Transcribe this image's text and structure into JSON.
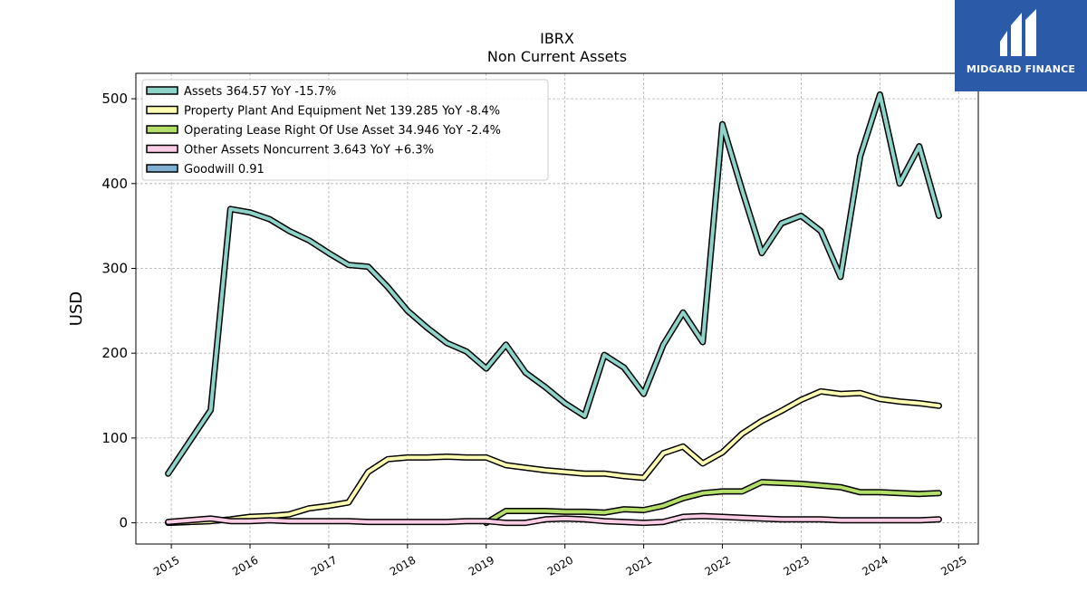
{
  "title": "IBRX",
  "subtitle": "Non Current  Assets",
  "brand": {
    "name": "MIDGARD FINANCE",
    "color": "#2a5aa8"
  },
  "chart_data": {
    "type": "line",
    "ylabel": "USD",
    "xlim": [
      2014.55,
      2025.25
    ],
    "ylim": [
      -25,
      530
    ],
    "yticks": [
      0,
      100,
      200,
      300,
      400,
      500
    ],
    "xticks": [
      2015,
      2016,
      2017,
      2018,
      2019,
      2020,
      2021,
      2022,
      2023,
      2024,
      2025
    ],
    "grid": true,
    "legend_position": "top-left",
    "series": [
      {
        "name": "Assets",
        "legend": "Assets  364.57 YoY -15.7%",
        "color": "#8dd3c7",
        "x": [
          2014.96,
          2015.5,
          2015.75,
          2016.0,
          2016.25,
          2016.5,
          2016.75,
          2017.0,
          2017.25,
          2017.5,
          2017.75,
          2018.0,
          2018.25,
          2018.5,
          2018.75,
          2019.0,
          2019.25,
          2019.5,
          2019.75,
          2020.0,
          2020.25,
          2020.5,
          2020.75,
          2021.0,
          2021.25,
          2021.5,
          2021.75,
          2022.0,
          2022.25,
          2022.5,
          2022.75,
          2023.0,
          2023.25,
          2023.5,
          2023.75,
          2024.0,
          2024.25,
          2024.5,
          2024.75
        ],
        "y": [
          58,
          133,
          370,
          366,
          358,
          344,
          333,
          318,
          304,
          302,
          278,
          250,
          230,
          212,
          202,
          182,
          210,
          177,
          160,
          141,
          126,
          198,
          183,
          152,
          210,
          248,
          213,
          470,
          392,
          318,
          353,
          362,
          344,
          290,
          432,
          505,
          400,
          444,
          362
        ]
      },
      {
        "name": "Property Plant And Equipment Net",
        "legend": "Property Plant And Equipment Net  139.285 YoY -8.4%",
        "color": "#ffffb3",
        "x": [
          2014.96,
          2015.5,
          2015.75,
          2016.0,
          2016.25,
          2016.5,
          2016.75,
          2017.0,
          2017.25,
          2017.5,
          2017.75,
          2018.0,
          2018.25,
          2018.5,
          2018.75,
          2019.0,
          2019.25,
          2019.5,
          2019.75,
          2020.0,
          2020.25,
          2020.5,
          2020.75,
          2021.0,
          2021.25,
          2021.5,
          2021.75,
          2022.0,
          2022.25,
          2022.5,
          2022.75,
          2023.0,
          2023.25,
          2023.5,
          2023.75,
          2024.0,
          2024.25,
          2024.5,
          2024.75
        ],
        "y": [
          0,
          2,
          4,
          7,
          8,
          10,
          17,
          20,
          24,
          60,
          75,
          77,
          77,
          78,
          77,
          77,
          68,
          65,
          62,
          60,
          58,
          58,
          55,
          53,
          82,
          90,
          70,
          83,
          105,
          120,
          132,
          145,
          155,
          152,
          153,
          146,
          143,
          141,
          138
        ]
      },
      {
        "name": "Operating Lease Right Of Use Asset",
        "legend": "Operating Lease Right Of Use Asset  34.946 YoY -2.4%",
        "color": "#b3de69",
        "x": [
          2019.0,
          2019.25,
          2019.5,
          2019.75,
          2020.0,
          2020.25,
          2020.5,
          2020.75,
          2021.0,
          2021.25,
          2021.5,
          2021.75,
          2022.0,
          2022.25,
          2022.5,
          2022.75,
          2023.0,
          2023.25,
          2023.5,
          2023.75,
          2024.0,
          2024.25,
          2024.5,
          2024.75
        ],
        "y": [
          0,
          14,
          14,
          14,
          13,
          13,
          12,
          16,
          15,
          20,
          29,
          35,
          37,
          37,
          48,
          47,
          46,
          44,
          42,
          36,
          36,
          35,
          34,
          35
        ]
      },
      {
        "name": "Other Assets Noncurrent",
        "legend": "Other Assets Noncurrent  3.643 YoY +6.3%",
        "color": "#fccde5",
        "x": [
          2014.96,
          2015.5,
          2015.75,
          2016.0,
          2016.25,
          2016.5,
          2016.75,
          2017.0,
          2017.25,
          2017.5,
          2017.75,
          2018.0,
          2018.25,
          2018.5,
          2018.75,
          2019.0,
          2019.25,
          2019.5,
          2019.75,
          2020.0,
          2020.25,
          2020.5,
          2020.75,
          2021.0,
          2021.25,
          2021.5,
          2021.75,
          2022.0,
          2022.25,
          2022.5,
          2022.75,
          2023.0,
          2023.25,
          2023.5,
          2023.75,
          2024.0,
          2024.25,
          2024.5,
          2024.75
        ],
        "y": [
          1,
          5,
          2,
          2,
          3,
          2,
          2,
          2,
          2,
          1,
          1,
          1,
          1,
          1,
          2,
          2,
          0,
          0,
          4,
          5,
          4,
          2,
          1,
          0,
          1,
          7,
          8,
          7,
          6,
          5,
          4,
          4,
          4,
          3,
          3,
          3,
          3,
          3,
          4
        ]
      },
      {
        "name": "Goodwill",
        "legend": "Goodwill  0.91",
        "color": "#80b1d3",
        "x": [],
        "y": []
      }
    ]
  }
}
